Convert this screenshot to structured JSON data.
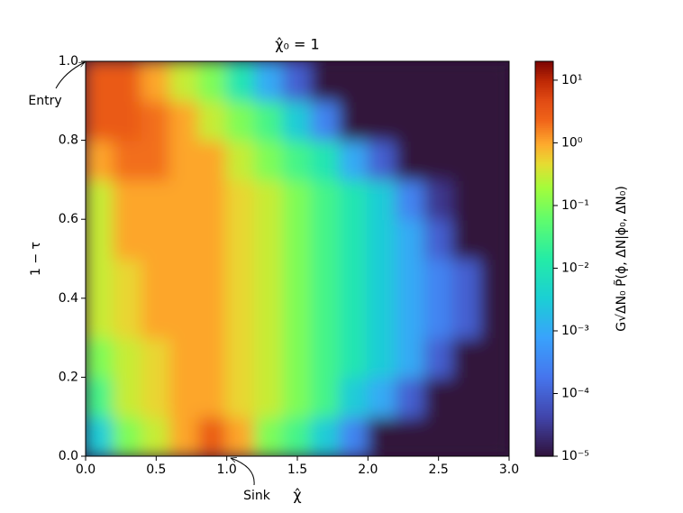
{
  "chart_data": {
    "type": "heatmap",
    "title": "χ̂₀ = 1",
    "x_label": "χ̂",
    "y_label": "1 − τ",
    "colorbar_label": "G√ΔN₀ P̃(ϕ, ΔN|ϕ₀, ΔN₀)",
    "annotations": [
      {
        "text": "Entry",
        "x": 0,
        "y": 1
      },
      {
        "text": "Sink",
        "x": 1,
        "y": 0
      }
    ],
    "xlim": [
      0,
      3
    ],
    "ylim": [
      0,
      1
    ],
    "xticks": [
      {
        "value": 0,
        "label": "0.0"
      },
      0.5,
      {
        "value": 1,
        "label": "1.0"
      },
      1.5,
      {
        "value": 2,
        "label": "2.0"
      },
      2.5,
      {
        "value": 3,
        "label": "3.0"
      }
    ],
    "yticks": [
      {
        "value": 0,
        "label": "0.0"
      },
      0.2,
      0.4,
      0.6,
      0.8,
      {
        "value": 1,
        "label": "1.0"
      }
    ],
    "log_color": true,
    "clim": [
      1e-05,
      20
    ],
    "cticks": [
      {
        "value": 1e-05,
        "label": "10⁻⁵"
      },
      {
        "value": 0.0001,
        "label": "10⁻⁴"
      },
      {
        "value": 0.001,
        "label": "10⁻³"
      },
      {
        "value": 0.01,
        "label": "10⁻²"
      },
      {
        "value": 0.1,
        "label": "10⁻¹"
      },
      {
        "value": 1,
        "label": "10⁰"
      },
      {
        "value": 10,
        "label": "10¹"
      }
    ],
    "x": [
      0.1,
      0.3,
      0.5,
      0.7,
      0.9,
      1.1,
      1.3,
      1.5,
      1.7,
      1.9,
      2.1,
      2.3,
      2.5,
      2.7,
      2.9
    ],
    "y": [
      0.05,
      0.15,
      0.25,
      0.35,
      0.45,
      0.55,
      0.65,
      0.75,
      0.85,
      0.95
    ],
    "z": [
      [
        0.003,
        0.1,
        0.3,
        1,
        3,
        1,
        0.1,
        0.03,
        0.003,
        0.0003,
        1e-05,
        1e-05,
        1e-05,
        1e-05,
        1e-05
      ],
      [
        0.03,
        0.3,
        0.5,
        1,
        1,
        0.5,
        0.3,
        0.1,
        0.03,
        0.003,
        0.001,
        0.0001,
        1e-05,
        1e-05,
        1e-05
      ],
      [
        0.1,
        0.3,
        0.5,
        1,
        1,
        0.5,
        0.3,
        0.1,
        0.03,
        0.01,
        0.003,
        0.001,
        0.0001,
        1e-05,
        1e-05
      ],
      [
        0.3,
        0.5,
        1,
        1,
        1,
        0.5,
        0.3,
        0.1,
        0.03,
        0.01,
        0.003,
        0.001,
        0.0003,
        0.0001,
        1e-05
      ],
      [
        0.3,
        0.5,
        1,
        1,
        1,
        0.5,
        0.3,
        0.1,
        0.03,
        0.01,
        0.003,
        0.001,
        0.0003,
        0.0001,
        1e-05
      ],
      [
        0.3,
        1,
        1,
        1,
        1,
        0.5,
        0.3,
        0.1,
        0.03,
        0.01,
        0.003,
        0.001,
        0.0001,
        1e-05,
        1e-05
      ],
      [
        0.3,
        1,
        1,
        1,
        1,
        0.5,
        0.3,
        0.1,
        0.03,
        0.01,
        0.003,
        0.0003,
        3e-05,
        1e-05,
        1e-05
      ],
      [
        1,
        2,
        2,
        1,
        1,
        0.3,
        0.1,
        0.03,
        0.01,
        0.001,
        0.0001,
        1e-05,
        1e-05,
        1e-05,
        1e-05
      ],
      [
        3,
        3,
        2,
        1,
        0.3,
        0.1,
        0.03,
        0.003,
        0.0003,
        1e-05,
        1e-05,
        1e-05,
        1e-05,
        1e-05,
        1e-05
      ],
      [
        3,
        3,
        1,
        0.3,
        0.1,
        0.01,
        0.001,
        0.0001,
        1e-05,
        1e-05,
        1e-05,
        1e-05,
        1e-05,
        1e-05,
        1e-05
      ]
    ]
  }
}
